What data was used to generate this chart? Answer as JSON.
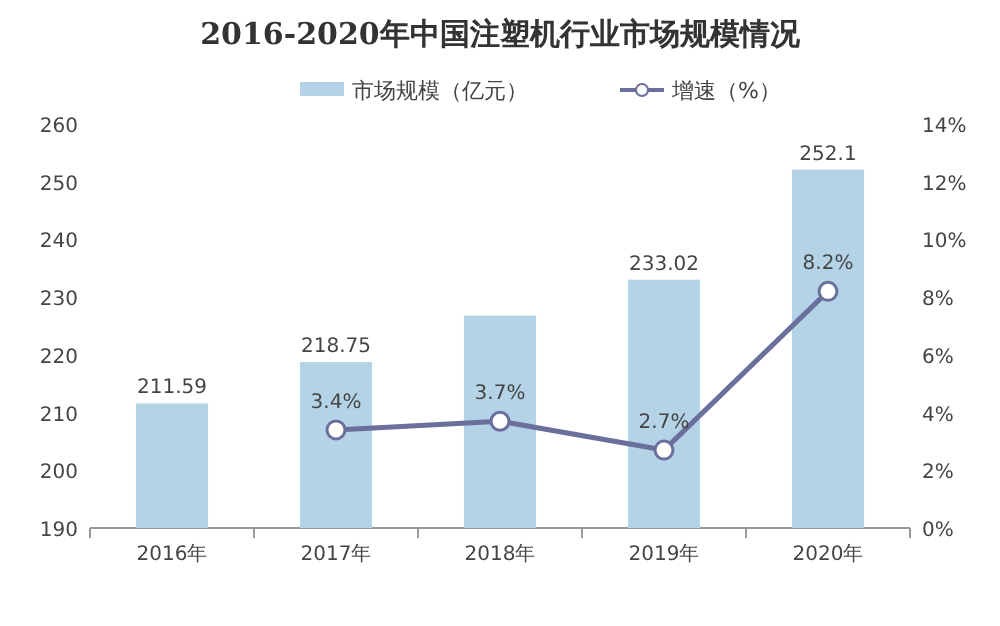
{
  "chart_data": {
    "type": "bar",
    "title": "2016-2020年中国注塑机行业市场规模情况",
    "categories": [
      "2016年",
      "2017年",
      "2018年",
      "2019年",
      "2020年"
    ],
    "series": [
      {
        "name": "市场规模（亿元）",
        "color": "#b4d3e6",
        "values": [
          211.59,
          218.75,
          226.8,
          233.02,
          252.1
        ],
        "value_labels": [
          "211.59",
          "218.75",
          null,
          "233.02",
          "252.1"
        ]
      },
      {
        "name": "增速（%）",
        "type": "line",
        "axis": "y2",
        "color": "#6b6f9b",
        "marker": "circle",
        "values": [
          null,
          3.4,
          3.7,
          2.7,
          8.2
        ],
        "value_labels": [
          null,
          "3.4%",
          "3.7%",
          "2.7%",
          "8.2%"
        ]
      }
    ],
    "ylim": [
      190,
      260
    ],
    "yticks": [
      190,
      200,
      210,
      220,
      230,
      240,
      250,
      260
    ],
    "y2lim": [
      0,
      14
    ],
    "y2ticks": [
      {
        "value": 0,
        "label": "0%"
      },
      {
        "value": 2,
        "label": "2%"
      },
      {
        "value": 4,
        "label": "4%"
      },
      {
        "value": 6,
        "label": "6%"
      },
      {
        "value": 8,
        "label": "8%"
      },
      {
        "value": 10,
        "label": "10%"
      },
      {
        "value": 12,
        "label": "12%"
      },
      {
        "value": 14,
        "label": "14%"
      }
    ],
    "grid": false,
    "legend": "top"
  }
}
